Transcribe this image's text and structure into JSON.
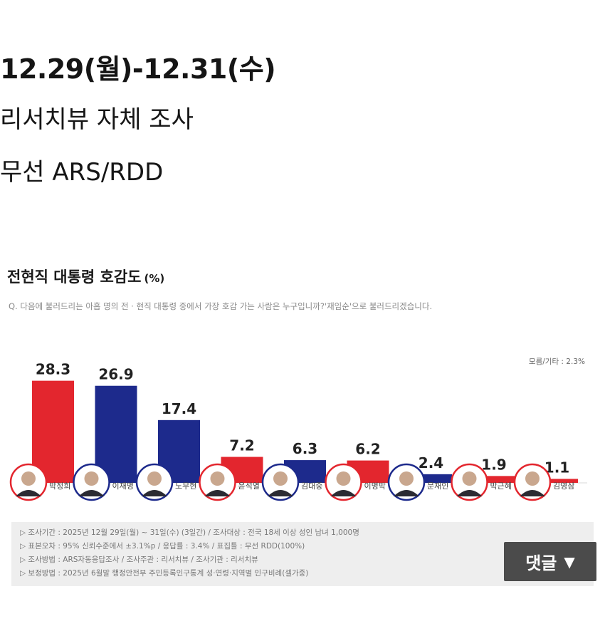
{
  "header": {
    "date_range": "12.29(월)-12.31(수)",
    "source": "리서치뷰 자체 조사",
    "method": "무선 ARS/RDD"
  },
  "chart_header": {
    "title": "전현직 대통령 호감도",
    "unit": "(%)",
    "question": "Q. 다음에 불러드리는 아홉 명의 전 · 현직 대통령 중에서 가장 호감 가는 사람은 누구입니까?'재임순'으로 불러드리겠습니다.",
    "other_note": "모름/기타 : 2.3%"
  },
  "chart_data": {
    "type": "bar",
    "title": "전현직 대통령 호감도",
    "unit": "(%)",
    "categories": [
      "박정희",
      "이재명",
      "노무현",
      "윤석열",
      "김대중",
      "이명박",
      "문재인",
      "박근혜",
      "김영삼"
    ],
    "values": [
      28.3,
      26.9,
      17.4,
      7.2,
      6.3,
      6.2,
      2.4,
      1.9,
      1.1
    ],
    "bar_colors": [
      "#e3262e",
      "#1d2a8c",
      "#1d2a8c",
      "#e3262e",
      "#1d2a8c",
      "#e3262e",
      "#1d2a8c",
      "#e3262e",
      "#e3262e"
    ],
    "ylim": [
      0,
      30
    ],
    "grid": false
  },
  "footnotes": [
    "▷ 조사기간 : 2025년 12월 29일(월) ~ 31일(수) (3일간) / 조사대상 : 전국 18세 이상 성인 남녀 1,000명",
    "▷ 표본오차 : 95% 신뢰수준에서 ±3.1%p / 응답률 : 3.4% / 표집틀 : 무선 RDD(100%)",
    "▷ 조사방법 : ARS자동응답조사 / 조사주관 : 리서치뷰 / 조사기관 : 리서치뷰",
    "▷ 보정방법 : 2025년 6월말 행정안전부 주민등록인구통계 성·연령·지역별 인구비례(셀가중)"
  ],
  "comment_button": {
    "label": "댓글",
    "arrow": "▼"
  }
}
